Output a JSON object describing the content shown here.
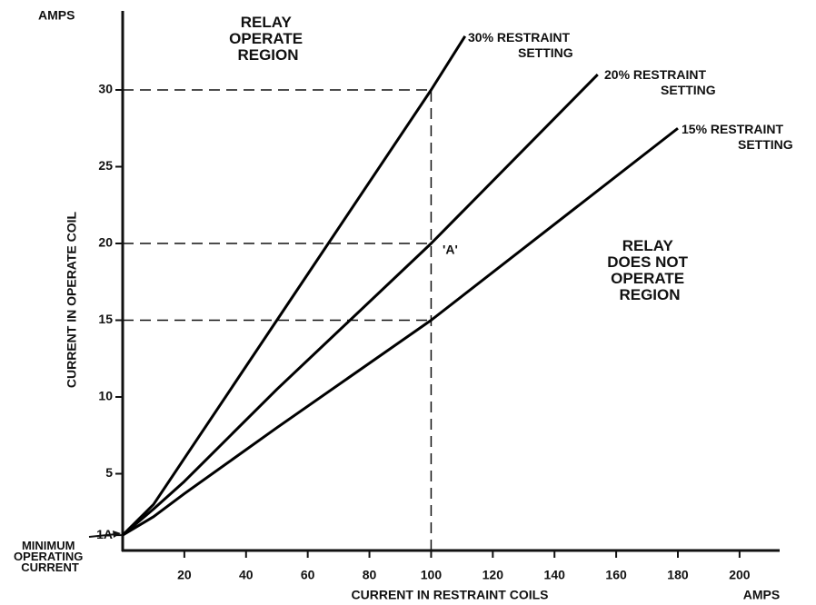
{
  "chart_data": {
    "type": "line",
    "y_label": "CURRENT IN OPERATE COIL",
    "x_label": "CURRENT IN RESTRAINT COILS",
    "y_unit": "AMPS",
    "x_unit": "AMPS",
    "xlim": [
      0,
      213
    ],
    "ylim": [
      0,
      35
    ],
    "xticks": [
      20,
      40,
      60,
      80,
      100,
      120,
      140,
      160,
      180,
      200
    ],
    "yticks": [
      {
        "value": 1,
        "label": "1A"
      },
      5,
      10,
      15,
      20,
      25,
      30
    ],
    "series": [
      {
        "name": "30% RESTRAINT SETTING",
        "color": "#000000",
        "x": [
          0,
          10,
          20,
          50,
          100,
          111
        ],
        "values": [
          1,
          3,
          6,
          15,
          30,
          33.5
        ]
      },
      {
        "name": "20% RESTRAINT SETTING",
        "color": "#000000",
        "x": [
          0,
          10,
          20,
          50,
          100,
          154
        ],
        "values": [
          1,
          2.7,
          4.5,
          10.5,
          20,
          31
        ]
      },
      {
        "name": "15% RESTRAINT SETTING",
        "color": "#000000",
        "x": [
          0,
          10,
          20,
          50,
          100,
          180
        ],
        "values": [
          1,
          2.2,
          3.7,
          8,
          15,
          27.5
        ]
      }
    ],
    "reference_lines": {
      "x": 100,
      "y": [
        30,
        20,
        15
      ]
    },
    "annotations": {
      "operate": "RELAY OPERATE REGION",
      "not_operate": "RELAY DOES NOT OPERATE REGION",
      "point": "'A'",
      "minimum": "MINIMUM OPERATING CURRENT"
    }
  }
}
